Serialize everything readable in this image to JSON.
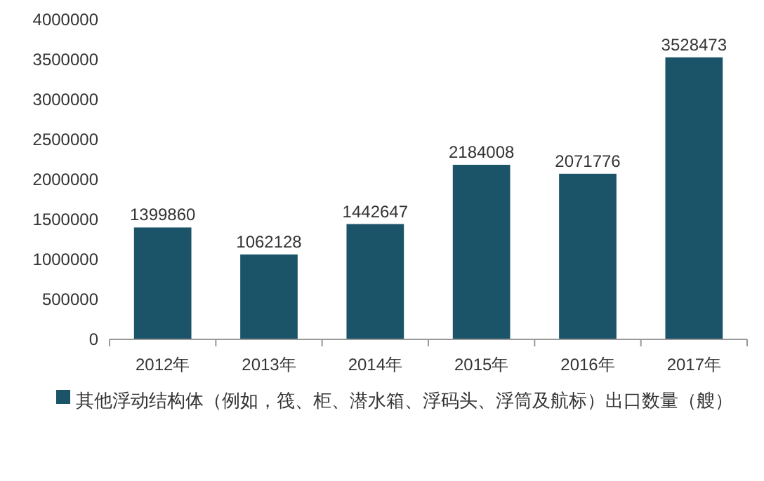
{
  "chart_data": {
    "type": "bar",
    "categories": [
      "2012年",
      "2013年",
      "2014年",
      "2015年",
      "2016年",
      "2017年"
    ],
    "series": [
      {
        "name": "其他浮动结构体（例如，筏、柜、潜水箱、浮码头、浮筒及航标）出口数量（艘）",
        "color": "#1b5468",
        "values": [
          1399860,
          1062128,
          1442647,
          2184008,
          2071776,
          3528473
        ]
      }
    ],
    "ylim": [
      0,
      4000000
    ],
    "yticks": [
      0,
      500000,
      1000000,
      1500000,
      2000000,
      2500000,
      3000000,
      3500000,
      4000000
    ],
    "data_labels": true,
    "legend": "bottom",
    "grid": false
  }
}
